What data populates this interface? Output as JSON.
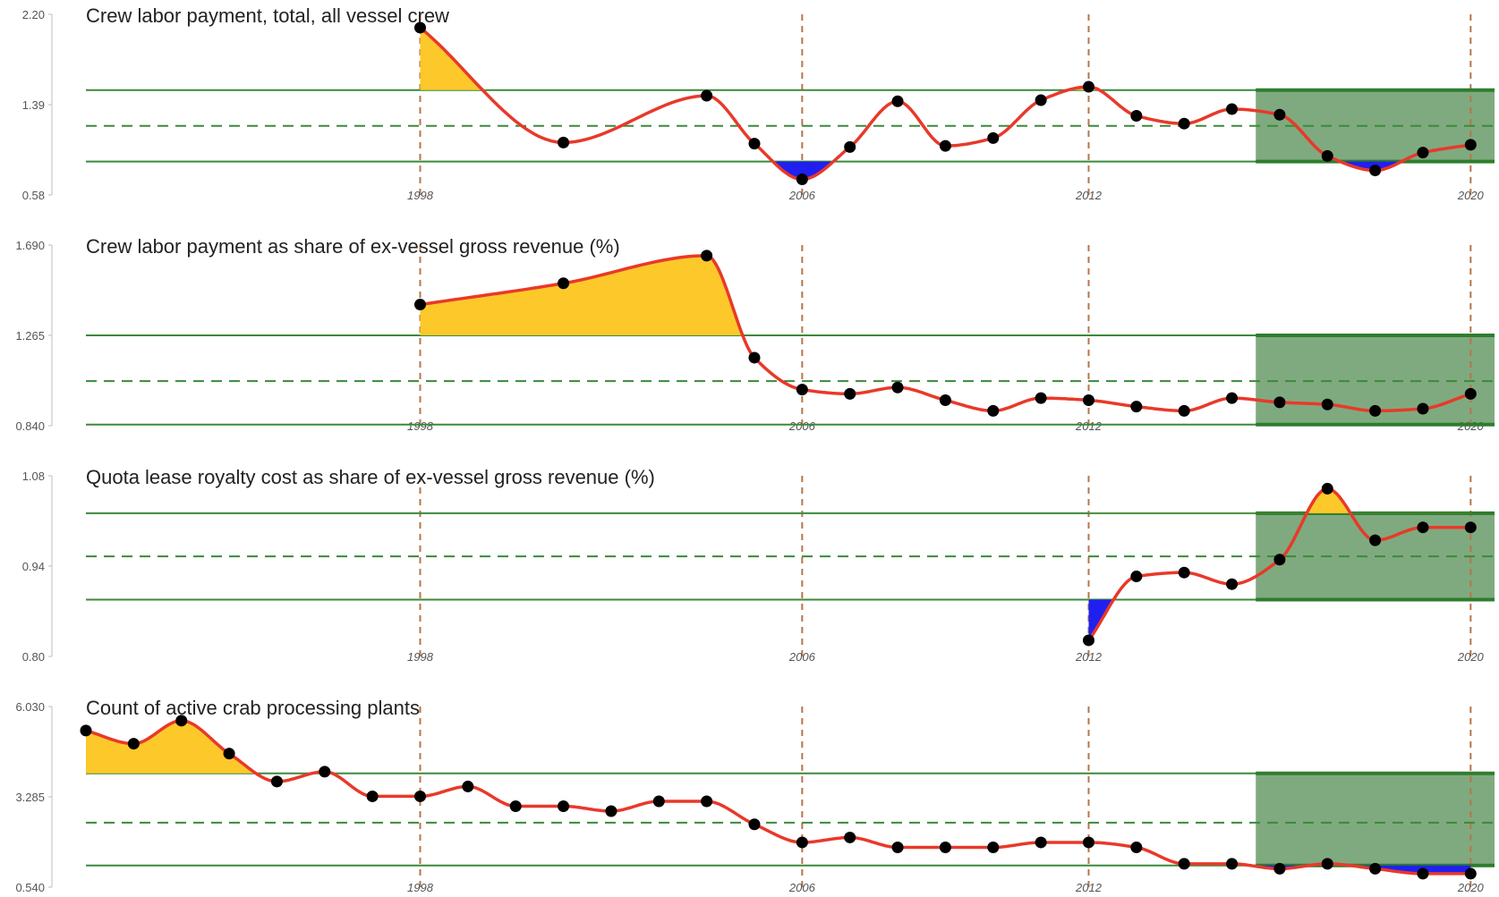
{
  "colors": {
    "line": "#e8392a",
    "point": "#000000",
    "above_fill": "#fcc82a",
    "below_fill": "#2020ee",
    "band_line": "#3a8a3a",
    "recent_box": "#7faa7f",
    "year_line": "#b5764a"
  },
  "chart_data": [
    {
      "type": "line",
      "title": "Crew labor payment, total, all vessel crew",
      "yticks": [
        "2.20",
        "1.39",
        "0.58"
      ],
      "ylim": [
        0.58,
        2.2
      ],
      "xticks": [
        "1998",
        "2006",
        "2012",
        "2020"
      ],
      "xlim": [
        1991,
        2020.5
      ],
      "mean": 1.2,
      "band": [
        0.88,
        1.52
      ],
      "recent_window": [
        2015.5,
        2020.5
      ],
      "x": [
        1998,
        2001,
        2004,
        2005,
        2006,
        2007,
        2008,
        2009,
        2010,
        2011,
        2012,
        2013,
        2014,
        2015,
        2016,
        2017,
        2018,
        2019,
        2020
      ],
      "y": [
        2.08,
        1.05,
        1.47,
        1.04,
        0.72,
        1.01,
        1.42,
        1.02,
        1.09,
        1.43,
        1.55,
        1.29,
        1.22,
        1.35,
        1.3,
        0.93,
        0.8,
        0.96,
        1.03
      ],
      "grid": false
    },
    {
      "type": "line",
      "title": "Crew labor payment as share of ex-vessel gross revenue (%)",
      "yticks": [
        "1.690",
        "1.265",
        "0.840"
      ],
      "ylim": [
        0.84,
        1.69
      ],
      "xticks": [
        "1998",
        "2006",
        "2012",
        "2020"
      ],
      "xlim": [
        1991,
        2020.5
      ],
      "mean": 1.05,
      "band": [
        0.845,
        1.265
      ],
      "recent_window": [
        2015.5,
        2020.5
      ],
      "x": [
        1998,
        2001,
        2004,
        2005,
        2006,
        2007,
        2008,
        2009,
        2010,
        2011,
        2012,
        2013,
        2014,
        2015,
        2016,
        2017,
        2018,
        2019,
        2020
      ],
      "y": [
        1.41,
        1.51,
        1.64,
        1.16,
        1.01,
        0.99,
        1.02,
        0.96,
        0.91,
        0.97,
        0.96,
        0.93,
        0.91,
        0.97,
        0.95,
        0.94,
        0.91,
        0.92,
        0.99
      ],
      "grid": false
    },
    {
      "type": "line",
      "title": "Quota lease royalty cost as share of ex-vessel gross revenue (%)",
      "yticks": [
        "1.08",
        "0.94",
        "0.80"
      ],
      "ylim": [
        0.8,
        1.08
      ],
      "xticks": [
        "1998",
        "2006",
        "2012",
        "2020"
      ],
      "xlim": [
        1991,
        2020.5
      ],
      "mean": 0.955,
      "band": [
        0.888,
        1.022
      ],
      "recent_window": [
        2015.5,
        2020.5
      ],
      "x": [
        2012,
        2013,
        2014,
        2015,
        2016,
        2017,
        2018,
        2019,
        2020
      ],
      "y": [
        0.825,
        0.924,
        0.93,
        0.912,
        0.95,
        1.06,
        0.98,
        1.0,
        1.0
      ],
      "grid": false
    },
    {
      "type": "line",
      "title": "Count of active crab processing plants",
      "yticks": [
        "6.030",
        "3.285",
        "0.540"
      ],
      "ylim": [
        0.54,
        6.03
      ],
      "xticks": [
        "1998",
        "2006",
        "2012",
        "2020"
      ],
      "xlim": [
        1991,
        2020.5
      ],
      "mean": 2.5,
      "band": [
        1.2,
        4.0
      ],
      "recent_window": [
        2015.5,
        2020.5
      ],
      "x": [
        1991,
        1992,
        1993,
        1994,
        1995,
        1996,
        1997,
        1998,
        1999,
        2000,
        2001,
        2002,
        2003,
        2004,
        2005,
        2006,
        2007,
        2008,
        2009,
        2010,
        2011,
        2012,
        2013,
        2014,
        2015,
        2016,
        2017,
        2018,
        2019,
        2020
      ],
      "y": [
        5.3,
        4.9,
        5.6,
        4.6,
        3.75,
        4.05,
        3.3,
        3.3,
        3.6,
        3.0,
        3.0,
        2.85,
        3.15,
        3.15,
        2.45,
        1.9,
        2.05,
        1.75,
        1.75,
        1.75,
        1.9,
        1.9,
        1.75,
        1.25,
        1.25,
        1.1,
        1.25,
        1.1,
        0.95,
        0.95
      ],
      "grid": false
    }
  ]
}
